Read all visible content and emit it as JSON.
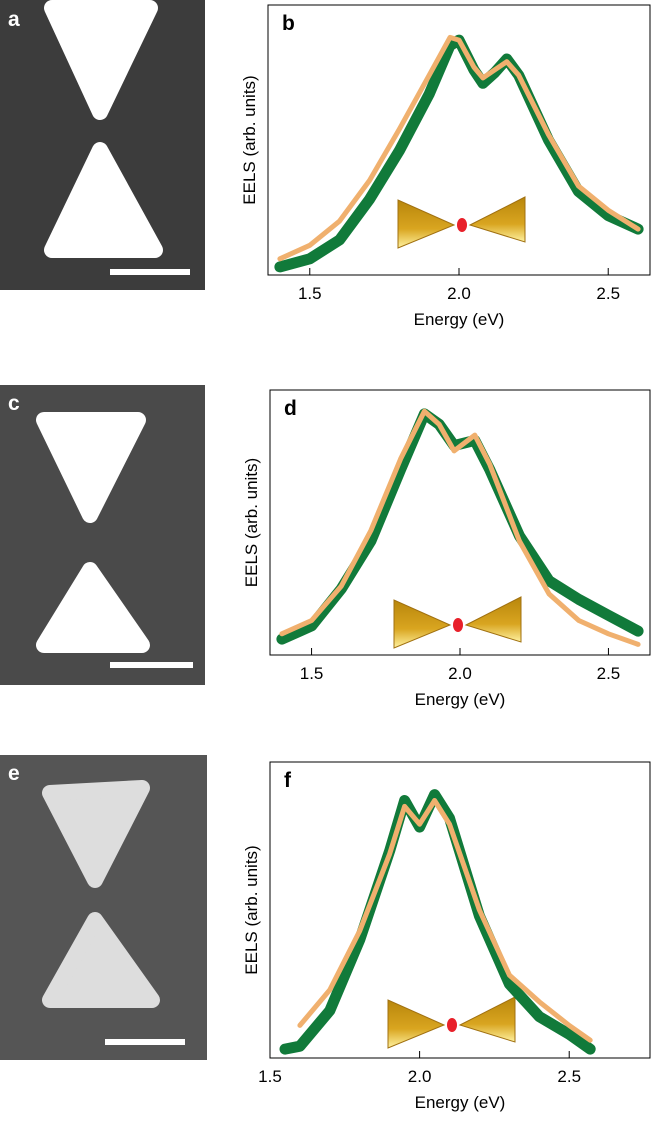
{
  "images": [
    {
      "label": "a"
    },
    {
      "label": "c"
    },
    {
      "label": "e"
    }
  ],
  "chart_data": [
    {
      "type": "line",
      "label": "b",
      "xlabel": "Energy (eV)",
      "ylabel": "EELS (arb. units)",
      "xlim": [
        1.36,
        2.64
      ],
      "xticks": [
        1.5,
        {
          "value": 2,
          "label": "2.0"
        },
        2.5
      ],
      "ylim": [
        0,
        1
      ],
      "x": [
        1.4,
        1.5,
        1.6,
        1.7,
        1.8,
        1.9,
        1.97,
        2.0,
        2.05,
        2.08,
        2.12,
        2.16,
        2.2,
        2.3,
        2.4,
        2.5,
        2.6
      ],
      "series": [
        {
          "color": "#117a3a",
          "values": [
            0.03,
            0.06,
            0.13,
            0.28,
            0.46,
            0.67,
            0.85,
            0.87,
            0.76,
            0.71,
            0.75,
            0.8,
            0.74,
            0.5,
            0.31,
            0.22,
            0.17
          ]
        },
        {
          "color": "#f0b06e",
          "values": [
            0.06,
            0.11,
            0.2,
            0.35,
            0.54,
            0.74,
            0.88,
            0.87,
            0.77,
            0.73,
            0.76,
            0.79,
            0.74,
            0.52,
            0.33,
            0.24,
            0.17
          ]
        }
      ]
    },
    {
      "type": "line",
      "label": "d",
      "xlabel": "Energy (eV)",
      "ylabel": "EELS (arb. units)",
      "xlim": [
        1.36,
        2.64
      ],
      "xticks": [
        1.5,
        {
          "value": 2,
          "label": "2.0"
        },
        2.5
      ],
      "ylim": [
        0,
        1
      ],
      "x": [
        1.4,
        1.5,
        1.6,
        1.7,
        1.8,
        1.88,
        1.93,
        1.98,
        2.05,
        2.1,
        2.2,
        2.3,
        2.4,
        2.5,
        2.6
      ],
      "series": [
        {
          "color": "#117a3a",
          "values": [
            0.06,
            0.11,
            0.25,
            0.43,
            0.7,
            0.91,
            0.87,
            0.79,
            0.81,
            0.7,
            0.45,
            0.28,
            0.21,
            0.15,
            0.09
          ]
        },
        {
          "color": "#f0b06e",
          "values": [
            0.08,
            0.13,
            0.26,
            0.47,
            0.74,
            0.92,
            0.87,
            0.77,
            0.83,
            0.72,
            0.43,
            0.23,
            0.13,
            0.08,
            0.04
          ]
        }
      ]
    },
    {
      "type": "line",
      "label": "f",
      "xlabel": "Energy (eV)",
      "ylabel": "EELS (arb. units)",
      "xlim": [
        1.5,
        2.77
      ],
      "xticks": [
        1.5,
        {
          "value": 2,
          "label": "2.0"
        },
        2.5
      ],
      "ylim": [
        0,
        1
      ],
      "x": [
        1.55,
        1.6,
        1.7,
        1.8,
        1.9,
        1.95,
        2.0,
        2.05,
        2.1,
        2.2,
        2.3,
        2.4,
        2.5,
        2.57
      ],
      "series": [
        {
          "color": "#117a3a",
          "values": [
            0.03,
            0.04,
            0.16,
            0.4,
            0.7,
            0.87,
            0.78,
            0.89,
            0.81,
            0.48,
            0.25,
            0.14,
            0.08,
            0.03
          ]
        },
        {
          "color": "#f0b06e",
          "values": [
            null,
            0.11,
            0.23,
            0.43,
            0.69,
            0.85,
            0.79,
            0.87,
            0.79,
            0.5,
            0.28,
            0.19,
            0.11,
            0.06
          ]
        }
      ]
    }
  ]
}
